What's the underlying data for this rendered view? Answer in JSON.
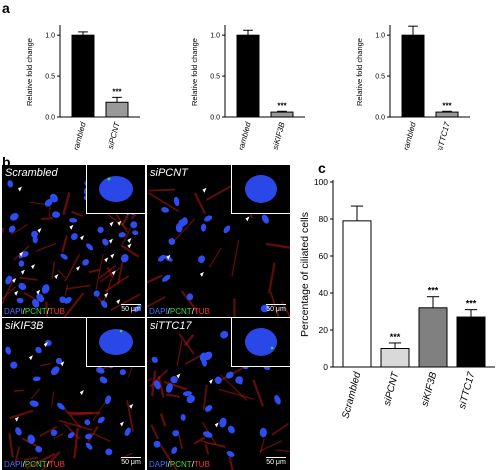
{
  "panels": {
    "a": "a",
    "b": "b",
    "c": "c"
  },
  "chart_data": [
    {
      "type": "bar",
      "panel": "a",
      "categories": [
        "Scrambled",
        "siPCNT"
      ],
      "values": [
        1.0,
        0.18
      ],
      "errors": [
        0.04,
        0.06
      ],
      "colors": [
        "#000000",
        "#999999"
      ],
      "ylabel": "Relative fold change",
      "ylim": [
        0,
        1.1
      ],
      "yticks": [
        "0.0",
        "0.5",
        "1.0"
      ],
      "significance": [
        "",
        "***"
      ]
    },
    {
      "type": "bar",
      "panel": "a",
      "categories": [
        "Scrambled",
        "siKIF3B"
      ],
      "values": [
        1.0,
        0.06
      ],
      "errors": [
        0.06,
        0.01
      ],
      "colors": [
        "#000000",
        "#999999"
      ],
      "ylabel": "Relative fold change",
      "ylim": [
        0,
        1.1
      ],
      "yticks": [
        "0.0",
        "0.5",
        "1.0"
      ],
      "significance": [
        "",
        "***"
      ]
    },
    {
      "type": "bar",
      "panel": "a",
      "categories": [
        "Scrambled",
        "siTTC17"
      ],
      "values": [
        1.0,
        0.06
      ],
      "errors": [
        0.11,
        0.01
      ],
      "colors": [
        "#000000",
        "#999999"
      ],
      "ylabel": "Relative fold change",
      "ylim": [
        0,
        1.1
      ],
      "yticks": [
        "0.0",
        "0.5",
        "1.0"
      ],
      "significance": [
        "",
        "***"
      ]
    },
    {
      "type": "bar",
      "panel": "c",
      "categories": [
        "Scrambled",
        "siPCNT",
        "siKIF3B",
        "siTTC17"
      ],
      "values": [
        79,
        10,
        32,
        27
      ],
      "errors": [
        8,
        3,
        6,
        4
      ],
      "colors": [
        "#ffffff",
        "#d9d9d9",
        "#808080",
        "#000000"
      ],
      "ylabel": "Percentage of ciliated cells",
      "ylim": [
        0,
        100
      ],
      "yticks": [
        "0",
        "20",
        "40",
        "60",
        "80",
        "100"
      ],
      "significance": [
        "",
        "***",
        "***",
        "***"
      ]
    }
  ],
  "micrographs": [
    {
      "label": "Scrambled",
      "scale": "50 μm",
      "seed": 11,
      "cells": 38,
      "arrows": 26
    },
    {
      "label": "siPCNT",
      "scale": "50 μm",
      "seed": 23,
      "cells": 16,
      "arrows": 4
    },
    {
      "label": "siKIF3B",
      "scale": "50 μm",
      "seed": 37,
      "cells": 26,
      "arrows": 7
    },
    {
      "label": "siTTC17",
      "scale": "50 μm",
      "seed": 53,
      "cells": 30,
      "arrows": 6
    }
  ],
  "stain": {
    "dapi": "DAPI",
    "pcnt": "PCNT",
    "tub": "TUB",
    "sep": "/"
  },
  "stain_colors": {
    "dapi": "#4a6cff",
    "pcnt": "#3ddc3d",
    "tub": "#ff3030"
  }
}
